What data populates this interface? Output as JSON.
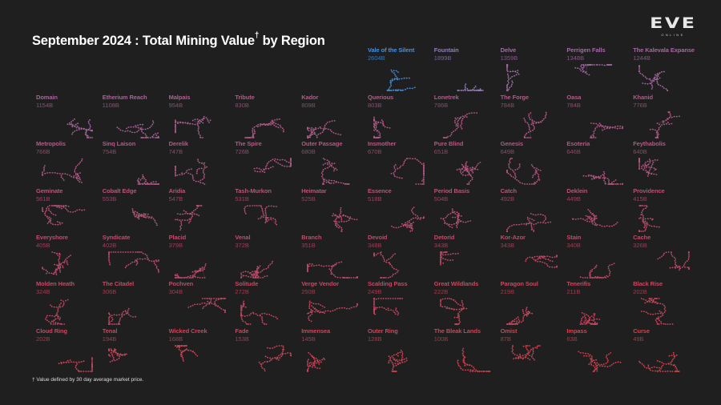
{
  "title": "September 2024 : Total Mining Value",
  "title_mark": "†",
  "title_suffix": " by Region",
  "logo": {
    "text": "EVE",
    "subtext": "ONLINE"
  },
  "footnote": "† Value defined by 30 day average market price.",
  "color_scale": [
    "#4a8fdc",
    "#8a86c8",
    "#a8649a",
    "#c04a66",
    "#d8404a"
  ],
  "chart_data": {
    "type": "small-multiples",
    "title": "September 2024 : Total Mining Value† by Region",
    "unit": "B",
    "regions": [
      {
        "name": "Vale of the Silent",
        "value": 2604,
        "label": "2604B"
      },
      {
        "name": "Fountain",
        "value": 1899,
        "label": "1899B"
      },
      {
        "name": "Delve",
        "value": 1359,
        "label": "1359B"
      },
      {
        "name": "Perrigen Falls",
        "value": 1348,
        "label": "1348B"
      },
      {
        "name": "The Kalevala Expanse",
        "value": 1244,
        "label": "1244B"
      },
      {
        "name": "Domain",
        "value": 1154,
        "label": "1154B"
      },
      {
        "name": "Etherium Reach",
        "value": 1108,
        "label": "1108B"
      },
      {
        "name": "Malpais",
        "value": 954,
        "label": "954B"
      },
      {
        "name": "Tribute",
        "value": 830,
        "label": "830B"
      },
      {
        "name": "Kador",
        "value": 809,
        "label": "809B"
      },
      {
        "name": "Querious",
        "value": 803,
        "label": "803B"
      },
      {
        "name": "Lonetrek",
        "value": 786,
        "label": "786B"
      },
      {
        "name": "The Forge",
        "value": 784,
        "label": "784B"
      },
      {
        "name": "Oasa",
        "value": 784,
        "label": "784B"
      },
      {
        "name": "Khanid",
        "value": 776,
        "label": "776B"
      },
      {
        "name": "Metropolis",
        "value": 766,
        "label": "766B"
      },
      {
        "name": "Sinq Laison",
        "value": 754,
        "label": "754B"
      },
      {
        "name": "Derelik",
        "value": 747,
        "label": "747B"
      },
      {
        "name": "The Spire",
        "value": 726,
        "label": "726B"
      },
      {
        "name": "Outer Passage",
        "value": 680,
        "label": "680B"
      },
      {
        "name": "Insmother",
        "value": 670,
        "label": "670B"
      },
      {
        "name": "Pure Blind",
        "value": 651,
        "label": "651B"
      },
      {
        "name": "Genesis",
        "value": 649,
        "label": "649B"
      },
      {
        "name": "Esoteria",
        "value": 646,
        "label": "646B"
      },
      {
        "name": "Feythabolis",
        "value": 640,
        "label": "640B"
      },
      {
        "name": "Geminate",
        "value": 561,
        "label": "561B"
      },
      {
        "name": "Cobalt Edge",
        "value": 553,
        "label": "553B"
      },
      {
        "name": "Aridia",
        "value": 547,
        "label": "547B"
      },
      {
        "name": "Tash-Murkon",
        "value": 531,
        "label": "531B"
      },
      {
        "name": "Heimatar",
        "value": 525,
        "label": "525B"
      },
      {
        "name": "Essence",
        "value": 518,
        "label": "518B"
      },
      {
        "name": "Period Basis",
        "value": 504,
        "label": "504B"
      },
      {
        "name": "Catch",
        "value": 492,
        "label": "492B"
      },
      {
        "name": "Deklein",
        "value": 449,
        "label": "449B"
      },
      {
        "name": "Providence",
        "value": 415,
        "label": "415B"
      },
      {
        "name": "Everyshore",
        "value": 405,
        "label": "405B"
      },
      {
        "name": "Syndicate",
        "value": 402,
        "label": "402B"
      },
      {
        "name": "Placid",
        "value": 379,
        "label": "379B"
      },
      {
        "name": "Venal",
        "value": 372,
        "label": "372B"
      },
      {
        "name": "Branch",
        "value": 351,
        "label": "351B"
      },
      {
        "name": "Devoid",
        "value": 348,
        "label": "348B"
      },
      {
        "name": "Detorid",
        "value": 343,
        "label": "343B"
      },
      {
        "name": "Kor-Azor",
        "value": 343,
        "label": "343B"
      },
      {
        "name": "Stain",
        "value": 340,
        "label": "340B"
      },
      {
        "name": "Cache",
        "value": 326,
        "label": "326B"
      },
      {
        "name": "Molden Heath",
        "value": 324,
        "label": "324B"
      },
      {
        "name": "The Citadel",
        "value": 306,
        "label": "306B"
      },
      {
        "name": "Pochven",
        "value": 304,
        "label": "304B"
      },
      {
        "name": "Solitude",
        "value": 272,
        "label": "272B"
      },
      {
        "name": "Verge Vendor",
        "value": 250,
        "label": "250B"
      },
      {
        "name": "Scalding Pass",
        "value": 249,
        "label": "249B"
      },
      {
        "name": "Great Wildlands",
        "value": 222,
        "label": "222B"
      },
      {
        "name": "Paragon Soul",
        "value": 219,
        "label": "219B"
      },
      {
        "name": "Tenerifis",
        "value": 211,
        "label": "211B"
      },
      {
        "name": "Black Rise",
        "value": 202,
        "label": "202B"
      },
      {
        "name": "Cloud Ring",
        "value": 202,
        "label": "202B"
      },
      {
        "name": "Tenal",
        "value": 194,
        "label": "194B"
      },
      {
        "name": "Wicked Creek",
        "value": 168,
        "label": "168B"
      },
      {
        "name": "Fade",
        "value": 153,
        "label": "153B"
      },
      {
        "name": "Immensea",
        "value": 145,
        "label": "145B"
      },
      {
        "name": "Outer Ring",
        "value": 128,
        "label": "128B"
      },
      {
        "name": "The Bleak Lands",
        "value": 100,
        "label": "100B"
      },
      {
        "name": "Omist",
        "value": 87,
        "label": "87B"
      },
      {
        "name": "Impass",
        "value": 63,
        "label": "63B"
      },
      {
        "name": "Curse",
        "value": 49,
        "label": "49B"
      }
    ]
  }
}
